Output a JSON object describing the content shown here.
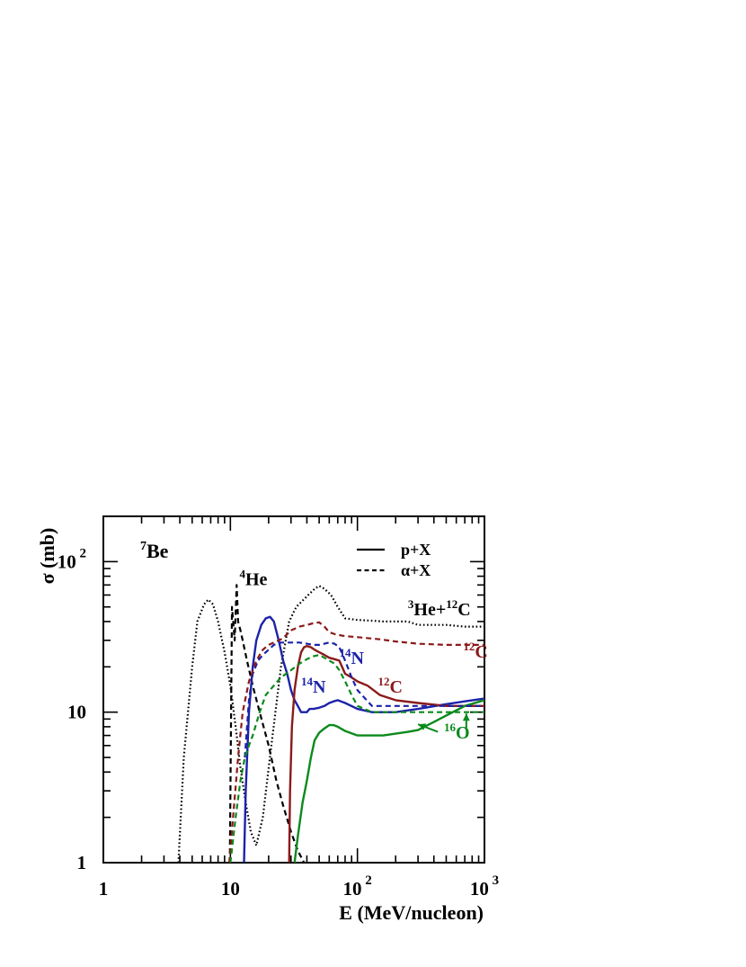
{
  "chart_data": {
    "type": "line",
    "title": "",
    "panel_label": {
      "sup": "7",
      "text": "Be"
    },
    "xlabel": "E (MeV/nucleon)",
    "ylabel": "σ (mb)",
    "xscale": "log",
    "yscale": "log",
    "xlim": [
      1,
      1000
    ],
    "ylim": [
      1,
      200
    ],
    "x_tick_labels": [
      {
        "value": 1,
        "base": "1",
        "exp": ""
      },
      {
        "value": 10,
        "base": "10",
        "exp": ""
      },
      {
        "value": 100,
        "base": "10",
        "exp": "2"
      },
      {
        "value": 1000,
        "base": "10",
        "exp": "3"
      }
    ],
    "y_tick_labels": [
      {
        "value": 1,
        "base": "1",
        "exp": ""
      },
      {
        "value": 10,
        "base": "10",
        "exp": ""
      },
      {
        "value": 100,
        "base": "10",
        "exp": " 2"
      }
    ],
    "legend": {
      "placement": "top-right",
      "entries": [
        {
          "label": "p+X",
          "style": "solid"
        },
        {
          "label": "α+X",
          "style": "dashed"
        }
      ]
    },
    "series": [
      {
        "name": "³He+¹²C",
        "style": "dotted",
        "color": "#000000",
        "x": [
          3.9,
          4.3,
          5,
          5.5,
          6.2,
          6.7,
          7.3,
          8,
          9,
          10,
          11,
          12,
          13.2,
          14.5,
          16,
          18,
          21,
          25,
          29,
          33,
          37,
          41,
          46,
          50,
          55,
          62,
          70,
          80,
          100,
          130,
          160,
          200,
          250,
          300,
          400,
          500,
          700,
          1000
        ],
        "y": [
          1,
          5,
          20,
          40,
          52,
          56,
          52,
          40,
          25,
          15,
          8,
          4.3,
          2.5,
          1.6,
          1.3,
          2,
          6,
          20,
          40,
          50,
          55,
          60,
          66,
          69,
          66,
          60,
          50,
          42,
          41,
          40.5,
          40,
          40,
          40,
          38,
          38,
          38,
          37,
          37
        ]
      },
      {
        "name": "⁴He",
        "style": "dashed",
        "color": "#000000",
        "x": [
          9.9,
          10.3,
          10.8,
          11.2,
          11.5,
          12,
          12.5,
          13.5,
          15,
          17,
          20,
          23,
          26,
          30,
          34,
          38
        ],
        "y": [
          1,
          50,
          30,
          70,
          40,
          35,
          30,
          22,
          15,
          10,
          6,
          3.5,
          2.4,
          1.6,
          1.2,
          1
        ]
      },
      {
        "name": "¹⁴N",
        "style": "solid",
        "color": "#1c23a8",
        "x": [
          12.8,
          13.2,
          14,
          15,
          16,
          17.5,
          19,
          20.5,
          22,
          24,
          26,
          28,
          30,
          32,
          34,
          36,
          38,
          40,
          42,
          45,
          50,
          55,
          60,
          65,
          70,
          80,
          100,
          130,
          160,
          200,
          300,
          500,
          700,
          1000
        ],
        "y": [
          1,
          3,
          10,
          20,
          30,
          38,
          42,
          43,
          40,
          30,
          22,
          18,
          14,
          12,
          11,
          10,
          10,
          10,
          10.5,
          10.5,
          10.7,
          11,
          11.5,
          11.8,
          12,
          11.5,
          10.5,
          10,
          10,
          10,
          10.5,
          11.3,
          11.8,
          12.3
        ]
      },
      {
        "name": "¹²C",
        "style": "solid",
        "color": "#8b1a1a",
        "x": [
          29,
          29.5,
          30.5,
          32,
          34,
          36,
          38,
          40,
          43,
          46,
          50,
          55,
          60,
          66,
          72,
          80,
          90,
          100,
          120,
          150,
          200,
          300,
          500,
          700,
          1000
        ],
        "y": [
          1,
          3,
          8,
          14,
          20,
          25,
          27,
          27.5,
          27,
          26,
          25,
          24,
          23,
          22.5,
          22,
          18,
          17,
          16,
          15,
          13,
          12,
          11.5,
          11,
          11,
          11
        ]
      },
      {
        "name": "¹⁶O",
        "style": "solid",
        "color": "#0b8a1c",
        "x": [
          32,
          34,
          37,
          40,
          43,
          46,
          50,
          55,
          60,
          65,
          70,
          80,
          100,
          130,
          160,
          200,
          250,
          300,
          400,
          500,
          700,
          1000
        ],
        "y": [
          1,
          1.5,
          2.5,
          3.5,
          5,
          6.5,
          7.3,
          7.8,
          8.2,
          8.2,
          8,
          7.5,
          7,
          7,
          7,
          7.2,
          7.4,
          7.6,
          8.6,
          9.5,
          11,
          12
        ]
      },
      {
        "name": "¹⁴N",
        "style": "dashed",
        "color": "#1c23a8",
        "x": [
          13,
          14,
          15,
          16.5,
          18,
          20,
          22,
          25,
          30,
          35,
          40,
          45,
          50,
          55,
          60,
          66,
          72,
          80,
          90,
          100,
          130,
          160,
          200,
          300,
          500,
          1000
        ],
        "y": [
          5,
          12,
          18,
          22,
          24,
          26,
          28,
          29,
          29,
          29,
          28.5,
          28,
          28,
          28.5,
          29,
          28.5,
          27,
          22,
          17,
          14,
          11,
          11,
          11,
          11,
          11,
          11
        ]
      },
      {
        "name": "¹²C",
        "style": "dashed",
        "color": "#8b1a1a",
        "x": [
          9.8,
          10.5,
          11.5,
          12.5,
          14,
          16,
          18,
          20,
          23,
          26,
          30,
          35,
          40,
          45,
          50,
          55,
          60,
          66,
          72,
          80,
          100,
          150,
          200,
          300,
          500,
          1000
        ],
        "y": [
          1,
          2,
          5,
          10,
          16,
          22,
          26,
          28,
          29.5,
          31,
          35,
          37,
          38,
          39,
          39.5,
          37,
          34,
          33,
          32.5,
          32,
          31.5,
          30.5,
          29.5,
          28.5,
          28,
          28
        ]
      },
      {
        "name": "¹⁶O",
        "style": "dashed",
        "color": "#0b8a1c",
        "x": [
          10,
          11,
          12,
          13,
          14,
          15,
          17,
          19,
          22,
          25,
          30,
          35,
          40,
          45,
          50,
          55,
          60,
          66,
          72,
          80,
          90,
          100,
          130,
          200,
          300,
          500,
          1000
        ],
        "y": [
          1,
          2,
          3.5,
          5,
          6,
          7,
          10,
          13,
          15,
          17,
          19,
          21,
          22.5,
          23.5,
          24,
          23,
          22,
          21,
          19,
          16,
          13,
          11,
          10,
          10,
          10,
          10,
          10
        ]
      }
    ],
    "annotations": [
      {
        "sup": "4",
        "text": "He",
        "color": "#000000",
        "x": 11.8,
        "y": 70
      },
      {
        "sup": "3",
        "text": "He+",
        "sup2": "12",
        "text2": "C",
        "color": "#000000",
        "x": 250,
        "y": 44
      },
      {
        "sup": "12",
        "text": "C",
        "color": "#8b1a1a",
        "x": 680,
        "y": 23
      },
      {
        "sup": "14",
        "text": "N",
        "color": "#1c23a8",
        "x": 72,
        "y": 21
      },
      {
        "sup": "14",
        "text": "N",
        "color": "#1c23a8",
        "x": 36,
        "y": 13.5
      },
      {
        "sup": "12",
        "text": "C",
        "color": "#8b1a1a",
        "x": 145,
        "y": 13.5
      },
      {
        "sup": "16",
        "text": "O",
        "color": "#0b8a1c",
        "x": 480,
        "y": 6.7
      }
    ],
    "arrows": [
      {
        "color": "#0b8a1c",
        "from": [
          430,
          7.4
        ],
        "to": [
          300,
          8.3
        ]
      },
      {
        "color": "#0b8a1c",
        "from": [
          720,
          7.8
        ],
        "to": [
          720,
          9.8
        ]
      }
    ],
    "grid": false
  }
}
